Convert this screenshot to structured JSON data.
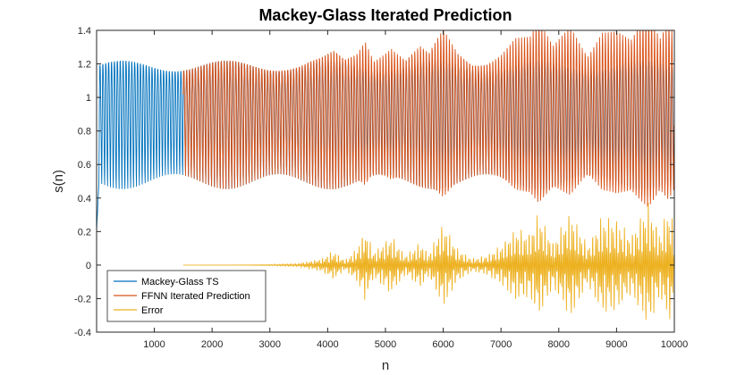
{
  "chart_data": {
    "type": "line",
    "title": "Mackey-Glass Iterated Prediction",
    "xlabel": "n",
    "ylabel": "s(n)",
    "xlim": [
      1,
      10000
    ],
    "ylim": [
      -0.4,
      1.4
    ],
    "xticks": [
      1000,
      2000,
      3000,
      4000,
      5000,
      6000,
      7000,
      8000,
      9000,
      10000
    ],
    "yticks": [
      -0.4,
      -0.2,
      0,
      0.2,
      0.4,
      0.6,
      0.8,
      1,
      1.2,
      1.4
    ],
    "grid": false,
    "legend_position": "bottom-left",
    "series": [
      {
        "name": "Mackey-Glass TS",
        "color": "#0072BD",
        "x_range": [
          1,
          10000
        ],
        "initial_value": 0.2,
        "min": 0.43,
        "max": 1.31,
        "mean": 0.9,
        "approx_period": 50
      },
      {
        "name": "FFNN Iterated Prediction",
        "color": "#D95319",
        "x_range": [
          1501,
          10000
        ],
        "min": 0.43,
        "max": 1.31,
        "mean": 0.9,
        "approx_period": 50
      },
      {
        "name": "Error",
        "color": "#EDB120",
        "x_range": [
          1501,
          10000
        ],
        "envelope": [
          {
            "x": 1500,
            "amp": 0.0
          },
          {
            "x": 2500,
            "amp": 0.001
          },
          {
            "x": 3000,
            "amp": 0.004
          },
          {
            "x": 3500,
            "amp": 0.01
          },
          {
            "x": 3900,
            "amp": 0.04
          },
          {
            "x": 4100,
            "amp": 0.09
          },
          {
            "x": 4300,
            "amp": 0.03
          },
          {
            "x": 4500,
            "amp": 0.1
          },
          {
            "x": 4650,
            "amp": 0.22
          },
          {
            "x": 4800,
            "amp": 0.08
          },
          {
            "x": 5100,
            "amp": 0.18
          },
          {
            "x": 5350,
            "amp": 0.06
          },
          {
            "x": 5600,
            "amp": 0.14
          },
          {
            "x": 5750,
            "amp": 0.07
          },
          {
            "x": 6000,
            "amp": 0.26
          },
          {
            "x": 6250,
            "amp": 0.1
          },
          {
            "x": 6500,
            "amp": 0.04
          },
          {
            "x": 6750,
            "amp": 0.06
          },
          {
            "x": 7000,
            "amp": 0.12
          },
          {
            "x": 7250,
            "amp": 0.22
          },
          {
            "x": 7500,
            "amp": 0.2
          },
          {
            "x": 7650,
            "amp": 0.32
          },
          {
            "x": 7900,
            "amp": 0.14
          },
          {
            "x": 8200,
            "amp": 0.33
          },
          {
            "x": 8500,
            "amp": 0.12
          },
          {
            "x": 8750,
            "amp": 0.3
          },
          {
            "x": 9000,
            "amp": 0.28
          },
          {
            "x": 9250,
            "amp": 0.18
          },
          {
            "x": 9550,
            "amp": 0.38
          },
          {
            "x": 9750,
            "amp": 0.2
          },
          {
            "x": 9900,
            "amp": 0.36
          },
          {
            "x": 10000,
            "amp": 0.25
          }
        ]
      }
    ]
  }
}
